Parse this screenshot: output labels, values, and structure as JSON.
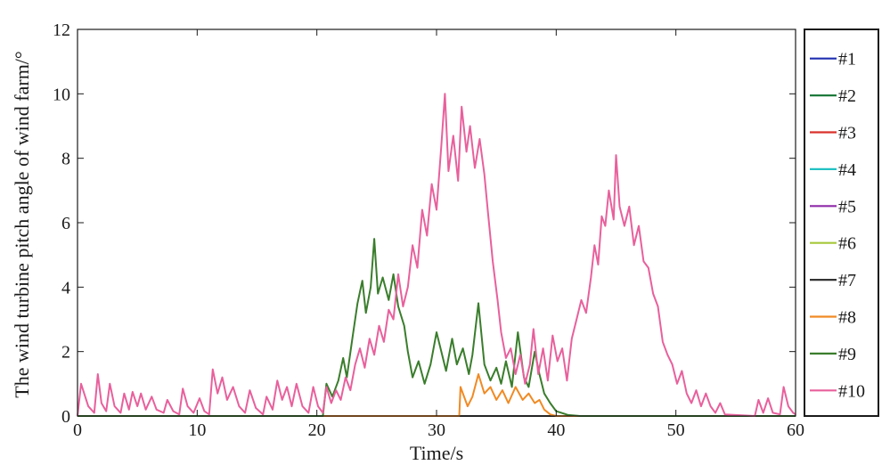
{
  "chart_data": {
    "type": "line",
    "title": "",
    "xlabel": "Time/s",
    "ylabel": "The wind turbine pitch angle of wind farm/°",
    "xlim": [
      0,
      60
    ],
    "ylim": [
      0,
      12
    ],
    "xticks": [
      "0",
      "10",
      "20",
      "30",
      "40",
      "50",
      "60"
    ],
    "yticks": [
      "0",
      "2",
      "4",
      "6",
      "8",
      "10",
      "12"
    ],
    "grid": false,
    "legend_position": "right, outside plot",
    "series": [
      {
        "name": "#1",
        "color": "#1f2fb0",
        "points": [
          [
            0,
            0
          ],
          [
            60,
            0
          ]
        ]
      },
      {
        "name": "#2",
        "color": "#1e7a3c",
        "points": [
          [
            0,
            0
          ],
          [
            60,
            0
          ]
        ]
      },
      {
        "name": "#3",
        "color": "#d9312b",
        "points": [
          [
            0,
            0
          ],
          [
            60,
            0
          ]
        ]
      },
      {
        "name": "#4",
        "color": "#22c1c3",
        "points": [
          [
            0,
            0
          ],
          [
            60,
            0
          ]
        ]
      },
      {
        "name": "#5",
        "color": "#8e2aa8",
        "points": [
          [
            0,
            0
          ],
          [
            60,
            0
          ]
        ]
      },
      {
        "name": "#6",
        "color": "#a6c83a",
        "points": [
          [
            0,
            0
          ],
          [
            60,
            0
          ]
        ]
      },
      {
        "name": "#7",
        "color": "#333333",
        "points": [
          [
            0,
            0
          ],
          [
            60,
            0
          ]
        ]
      },
      {
        "name": "#8",
        "color": "#f08a24",
        "points": [
          [
            0,
            0
          ],
          [
            31.9,
            0
          ],
          [
            32.0,
            0.9
          ],
          [
            32.6,
            0.3
          ],
          [
            33.0,
            0.6
          ],
          [
            33.5,
            1.3
          ],
          [
            34.0,
            0.7
          ],
          [
            34.5,
            0.9
          ],
          [
            35.0,
            0.5
          ],
          [
            35.5,
            0.8
          ],
          [
            36.0,
            0.4
          ],
          [
            36.6,
            0.9
          ],
          [
            37.2,
            0.5
          ],
          [
            37.7,
            0.7
          ],
          [
            38.2,
            0.4
          ],
          [
            38.6,
            0.5
          ],
          [
            39.0,
            0.2
          ],
          [
            39.5,
            0.05
          ],
          [
            40.0,
            0
          ],
          [
            60,
            0
          ]
        ]
      },
      {
        "name": "#9",
        "color": "#3a7d2c",
        "points": [
          [
            0,
            0
          ],
          [
            20.5,
            0
          ],
          [
            20.8,
            1.0
          ],
          [
            21.3,
            0.6
          ],
          [
            21.8,
            1.1
          ],
          [
            22.2,
            1.8
          ],
          [
            22.5,
            1.2
          ],
          [
            23.0,
            2.5
          ],
          [
            23.4,
            3.5
          ],
          [
            23.8,
            4.2
          ],
          [
            24.1,
            3.2
          ],
          [
            24.5,
            4.0
          ],
          [
            24.8,
            5.5
          ],
          [
            25.1,
            3.8
          ],
          [
            25.5,
            4.3
          ],
          [
            26.0,
            3.6
          ],
          [
            26.4,
            4.4
          ],
          [
            26.8,
            3.4
          ],
          [
            27.3,
            2.8
          ],
          [
            27.6,
            2.0
          ],
          [
            28.0,
            1.2
          ],
          [
            28.5,
            1.7
          ],
          [
            29.0,
            1.0
          ],
          [
            29.5,
            1.6
          ],
          [
            30.0,
            2.6
          ],
          [
            30.4,
            2.0
          ],
          [
            30.8,
            1.4
          ],
          [
            31.3,
            2.4
          ],
          [
            31.7,
            1.6
          ],
          [
            32.2,
            2.1
          ],
          [
            32.7,
            1.3
          ],
          [
            33.0,
            1.9
          ],
          [
            33.5,
            3.5
          ],
          [
            34.0,
            1.6
          ],
          [
            34.5,
            1.1
          ],
          [
            35.0,
            1.5
          ],
          [
            35.4,
            1.0
          ],
          [
            35.8,
            1.7
          ],
          [
            36.3,
            0.9
          ],
          [
            36.8,
            2.6
          ],
          [
            37.3,
            1.2
          ],
          [
            37.7,
            0.9
          ],
          [
            38.2,
            2.0
          ],
          [
            38.6,
            1.3
          ],
          [
            39.0,
            0.7
          ],
          [
            39.5,
            0.4
          ],
          [
            40.0,
            0.15
          ],
          [
            41.0,
            0.03
          ],
          [
            42.0,
            0
          ],
          [
            60,
            0
          ]
        ]
      },
      {
        "name": "#10",
        "color": "#e8609c",
        "points": [
          [
            0,
            0
          ],
          [
            0.3,
            1.0
          ],
          [
            0.9,
            0.3
          ],
          [
            1.4,
            0.1
          ],
          [
            1.7,
            1.3
          ],
          [
            2.0,
            0.4
          ],
          [
            2.4,
            0.15
          ],
          [
            2.7,
            1.0
          ],
          [
            3.1,
            0.3
          ],
          [
            3.6,
            0.1
          ],
          [
            3.9,
            0.7
          ],
          [
            4.3,
            0.2
          ],
          [
            4.6,
            0.75
          ],
          [
            5.0,
            0.3
          ],
          [
            5.3,
            0.7
          ],
          [
            5.7,
            0.2
          ],
          [
            6.2,
            0.6
          ],
          [
            6.6,
            0.2
          ],
          [
            7.2,
            0.1
          ],
          [
            7.5,
            0.5
          ],
          [
            8.0,
            0.15
          ],
          [
            8.5,
            0.05
          ],
          [
            8.8,
            0.85
          ],
          [
            9.2,
            0.3
          ],
          [
            9.7,
            0.1
          ],
          [
            10.2,
            0.55
          ],
          [
            10.6,
            0.15
          ],
          [
            11.0,
            0.05
          ],
          [
            11.3,
            1.45
          ],
          [
            11.7,
            0.7
          ],
          [
            12.1,
            1.2
          ],
          [
            12.5,
            0.5
          ],
          [
            13.0,
            0.9
          ],
          [
            13.5,
            0.3
          ],
          [
            14.0,
            0.1
          ],
          [
            14.4,
            0.8
          ],
          [
            14.9,
            0.25
          ],
          [
            15.5,
            0.05
          ],
          [
            15.8,
            0.6
          ],
          [
            16.3,
            0.2
          ],
          [
            16.7,
            1.1
          ],
          [
            17.1,
            0.5
          ],
          [
            17.5,
            0.9
          ],
          [
            17.9,
            0.3
          ],
          [
            18.3,
            1.0
          ],
          [
            18.8,
            0.3
          ],
          [
            19.3,
            0.1
          ],
          [
            19.7,
            0.9
          ],
          [
            20.1,
            0.3
          ],
          [
            20.5,
            0.1
          ],
          [
            20.8,
            0.9
          ],
          [
            21.2,
            0.4
          ],
          [
            21.6,
            0.8
          ],
          [
            22.0,
            0.5
          ],
          [
            22.4,
            1.2
          ],
          [
            22.8,
            0.8
          ],
          [
            23.2,
            1.6
          ],
          [
            23.6,
            2.1
          ],
          [
            24.0,
            1.5
          ],
          [
            24.4,
            2.4
          ],
          [
            24.8,
            1.9
          ],
          [
            25.2,
            2.8
          ],
          [
            25.6,
            2.3
          ],
          [
            26.0,
            3.3
          ],
          [
            26.4,
            3.0
          ],
          [
            26.8,
            4.4
          ],
          [
            27.2,
            3.4
          ],
          [
            27.6,
            4.0
          ],
          [
            28.0,
            5.3
          ],
          [
            28.4,
            4.6
          ],
          [
            28.8,
            6.4
          ],
          [
            29.2,
            5.6
          ],
          [
            29.6,
            7.2
          ],
          [
            30.0,
            6.4
          ],
          [
            30.4,
            8.4
          ],
          [
            30.7,
            10.0
          ],
          [
            31.0,
            7.6
          ],
          [
            31.4,
            8.7
          ],
          [
            31.8,
            7.3
          ],
          [
            32.1,
            9.6
          ],
          [
            32.5,
            8.2
          ],
          [
            32.8,
            9.0
          ],
          [
            33.2,
            7.7
          ],
          [
            33.6,
            8.6
          ],
          [
            34.0,
            7.5
          ],
          [
            34.3,
            6.3
          ],
          [
            34.7,
            4.8
          ],
          [
            35.1,
            3.6
          ],
          [
            35.4,
            2.6
          ],
          [
            35.8,
            1.8
          ],
          [
            36.2,
            2.1
          ],
          [
            36.6,
            1.3
          ],
          [
            37.0,
            1.9
          ],
          [
            37.4,
            1.0
          ],
          [
            37.8,
            1.6
          ],
          [
            38.1,
            2.7
          ],
          [
            38.5,
            1.3
          ],
          [
            38.9,
            2.1
          ],
          [
            39.3,
            1.1
          ],
          [
            39.7,
            2.5
          ],
          [
            40.1,
            1.7
          ],
          [
            40.5,
            2.1
          ],
          [
            40.9,
            1.1
          ],
          [
            41.3,
            2.4
          ],
          [
            41.7,
            3.0
          ],
          [
            42.1,
            3.6
          ],
          [
            42.5,
            3.2
          ],
          [
            42.9,
            4.3
          ],
          [
            43.2,
            5.3
          ],
          [
            43.5,
            4.7
          ],
          [
            43.8,
            6.2
          ],
          [
            44.1,
            5.9
          ],
          [
            44.4,
            7.0
          ],
          [
            44.8,
            6.1
          ],
          [
            45.0,
            8.1
          ],
          [
            45.3,
            6.5
          ],
          [
            45.7,
            5.9
          ],
          [
            46.1,
            6.5
          ],
          [
            46.5,
            5.3
          ],
          [
            46.9,
            5.9
          ],
          [
            47.3,
            4.8
          ],
          [
            47.7,
            4.6
          ],
          [
            48.1,
            3.8
          ],
          [
            48.5,
            3.4
          ],
          [
            48.9,
            2.3
          ],
          [
            49.3,
            1.9
          ],
          [
            49.7,
            1.6
          ],
          [
            50.1,
            1.0
          ],
          [
            50.5,
            1.4
          ],
          [
            50.9,
            0.7
          ],
          [
            51.3,
            0.4
          ],
          [
            51.7,
            0.8
          ],
          [
            52.1,
            0.3
          ],
          [
            52.5,
            0.7
          ],
          [
            52.9,
            0.3
          ],
          [
            53.3,
            0.1
          ],
          [
            53.7,
            0.4
          ],
          [
            54.1,
            0.05
          ],
          [
            56.6,
            0
          ],
          [
            56.9,
            0.5
          ],
          [
            57.3,
            0.1
          ],
          [
            57.7,
            0.55
          ],
          [
            58.1,
            0.1
          ],
          [
            58.7,
            0.05
          ],
          [
            59.0,
            0.9
          ],
          [
            59.4,
            0.3
          ],
          [
            59.8,
            0.1
          ],
          [
            60.0,
            0.05
          ]
        ]
      }
    ]
  }
}
